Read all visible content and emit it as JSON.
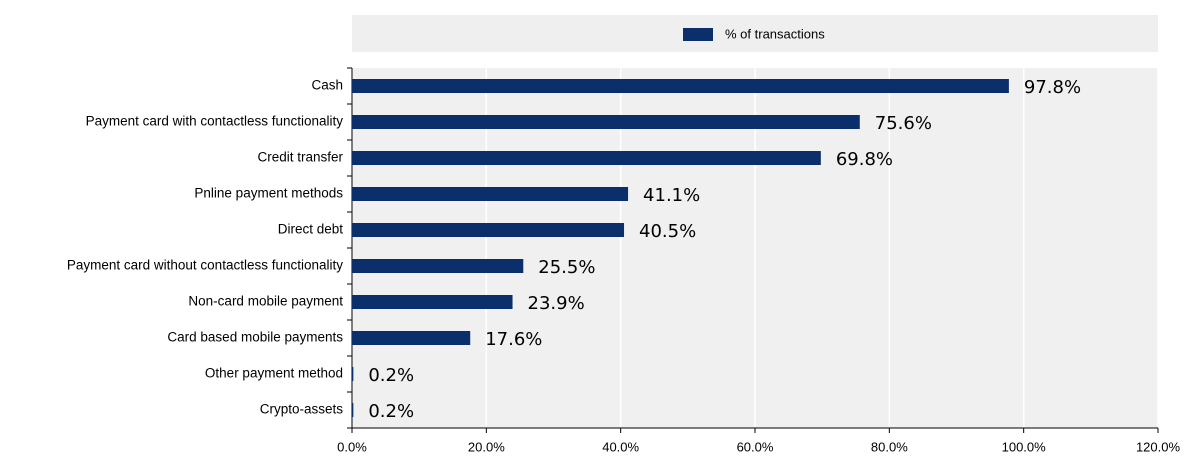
{
  "chart_data": {
    "type": "barh",
    "series": [
      {
        "name": "% of transactions",
        "color": "#0b2f6b",
        "values": [
          97.8,
          75.6,
          69.8,
          41.1,
          40.5,
          25.5,
          23.9,
          17.6,
          0.2,
          0.2
        ],
        "value_labels": [
          "97.8%",
          "75.6%",
          "69.8%",
          "41.1%",
          "40.5%",
          "25.5%",
          "23.9%",
          "17.6%",
          "0.2%",
          "0.2%"
        ]
      }
    ],
    "categories": [
      "Cash",
      "Payment card with contactless functionality",
      "Credit transfer",
      "Pnline payment methods",
      "Direct debt",
      "Payment card without contactless functionality",
      "Non-card mobile payment",
      "Card based mobile payments",
      "Other payment method",
      "Crypto-assets"
    ],
    "xlim": [
      0,
      120
    ],
    "xticks": [
      {
        "value": 0,
        "label": "0.0%"
      },
      {
        "value": 20,
        "label": "20.0%"
      },
      {
        "value": 40,
        "label": "40.0%"
      },
      {
        "value": 60,
        "label": "60.0%"
      },
      {
        "value": 80,
        "label": "80.0%"
      },
      {
        "value": 100,
        "label": "100.0%"
      },
      {
        "value": 120,
        "label": "120.0%"
      }
    ],
    "grid": true,
    "legend": "top"
  }
}
